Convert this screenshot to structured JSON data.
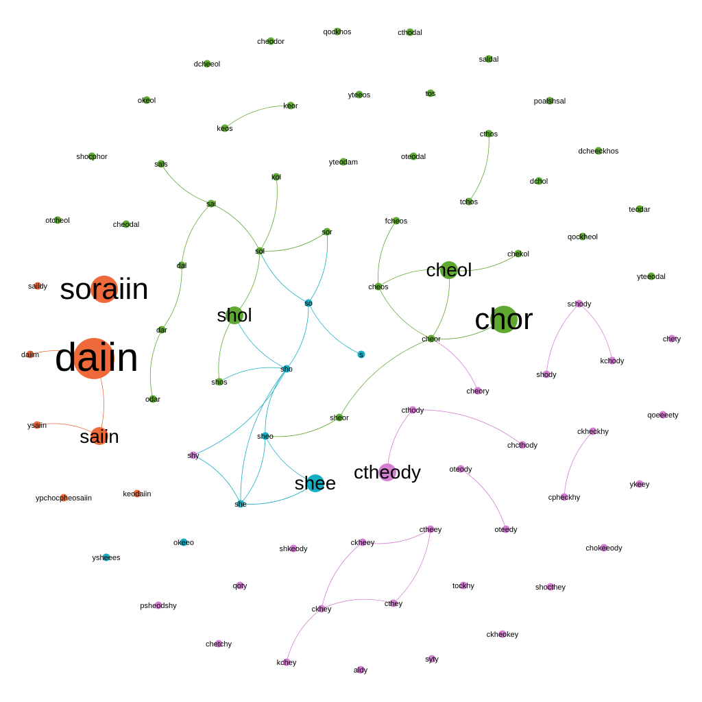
{
  "colors": {
    "orange": "#ef6a3a",
    "green": "#5fa832",
    "teal": "#17aec4",
    "purple": "#d380d3"
  },
  "nodes": [
    {
      "id": "daiin",
      "label": "daiin",
      "group": "orange",
      "size": "xl"
    },
    {
      "id": "soraiin",
      "label": "soraiin",
      "group": "orange",
      "size": "l"
    },
    {
      "id": "saiin",
      "label": "saiin",
      "group": "orange",
      "size": "m"
    },
    {
      "id": "daiim",
      "label": "daiim",
      "group": "orange",
      "size": "s"
    },
    {
      "id": "saildy",
      "label": "saildy",
      "group": "orange",
      "size": "s"
    },
    {
      "id": "ysaiin",
      "label": "ysaiin",
      "group": "orange",
      "size": "s"
    },
    {
      "id": "keodaiin",
      "label": "keodaiin",
      "group": "orange",
      "size": "s"
    },
    {
      "id": "ypchocpheosaiin",
      "label": "ypchocpheosaiin",
      "group": "orange",
      "size": "s"
    },
    {
      "id": "chor",
      "label": "chor",
      "group": "green",
      "size": "l"
    },
    {
      "id": "cheol",
      "label": "cheol",
      "group": "green",
      "size": "m"
    },
    {
      "id": "shol",
      "label": "shol",
      "group": "green",
      "size": "m"
    },
    {
      "id": "cheodor",
      "label": "cheodor",
      "group": "green",
      "size": "s"
    },
    {
      "id": "qockhos",
      "label": "qockhos",
      "group": "green",
      "size": "s"
    },
    {
      "id": "cthodal",
      "label": "cthodal",
      "group": "green",
      "size": "s"
    },
    {
      "id": "saldal",
      "label": "saldal",
      "group": "green",
      "size": "s"
    },
    {
      "id": "dcheeol",
      "label": "dcheeol",
      "group": "green",
      "size": "s"
    },
    {
      "id": "okeol",
      "label": "okeol",
      "group": "green",
      "size": "s"
    },
    {
      "id": "keor",
      "label": "keor",
      "group": "green",
      "size": "s"
    },
    {
      "id": "yteeos",
      "label": "yteeos",
      "group": "green",
      "size": "s"
    },
    {
      "id": "tos",
      "label": "tos",
      "group": "green",
      "size": "s"
    },
    {
      "id": "poalshsal",
      "label": "poalshsal",
      "group": "green",
      "size": "s"
    },
    {
      "id": "keos",
      "label": "keos",
      "group": "green",
      "size": "s"
    },
    {
      "id": "cthos",
      "label": "cthos",
      "group": "green",
      "size": "s"
    },
    {
      "id": "shocphor",
      "label": "shocphor",
      "group": "green",
      "size": "s"
    },
    {
      "id": "sals",
      "label": "sals",
      "group": "green",
      "size": "s"
    },
    {
      "id": "yteodam",
      "label": "yteodam",
      "group": "green",
      "size": "s"
    },
    {
      "id": "oteodal",
      "label": "oteodal",
      "group": "green",
      "size": "s"
    },
    {
      "id": "dcheeckhos",
      "label": "dcheeckhos",
      "group": "green",
      "size": "s"
    },
    {
      "id": "kol",
      "label": "kol",
      "group": "green",
      "size": "s"
    },
    {
      "id": "dchol",
      "label": "dchol",
      "group": "green",
      "size": "s"
    },
    {
      "id": "sal",
      "label": "sal",
      "group": "green",
      "size": "s"
    },
    {
      "id": "tchos",
      "label": "tchos",
      "group": "green",
      "size": "s"
    },
    {
      "id": "teodar",
      "label": "teodar",
      "group": "green",
      "size": "s"
    },
    {
      "id": "otcheol",
      "label": "otcheol",
      "group": "green",
      "size": "s"
    },
    {
      "id": "cheodal",
      "label": "cheodal",
      "group": "green",
      "size": "s"
    },
    {
      "id": "fcheos",
      "label": "fcheos",
      "group": "green",
      "size": "s"
    },
    {
      "id": "sor",
      "label": "sor",
      "group": "green",
      "size": "s"
    },
    {
      "id": "qockheol",
      "label": "qockheol",
      "group": "green",
      "size": "s"
    },
    {
      "id": "sol",
      "label": "sol",
      "group": "green",
      "size": "s"
    },
    {
      "id": "chekol",
      "label": "chekol",
      "group": "green",
      "size": "s"
    },
    {
      "id": "dal",
      "label": "dal",
      "group": "green",
      "size": "s"
    },
    {
      "id": "yteeodal",
      "label": "yteeodal",
      "group": "green",
      "size": "s"
    },
    {
      "id": "cheos",
      "label": "cheos",
      "group": "green",
      "size": "s"
    },
    {
      "id": "dar",
      "label": "dar",
      "group": "green",
      "size": "s"
    },
    {
      "id": "cheor",
      "label": "cheor",
      "group": "green",
      "size": "s"
    },
    {
      "id": "shos",
      "label": "shos",
      "group": "green",
      "size": "s"
    },
    {
      "id": "odar",
      "label": "odar",
      "group": "green",
      "size": "s"
    },
    {
      "id": "sheor",
      "label": "sheor",
      "group": "green",
      "size": "s"
    },
    {
      "id": "shee",
      "label": "shee",
      "group": "teal",
      "size": "m"
    },
    {
      "id": "so",
      "label": "so",
      "group": "teal",
      "size": "s"
    },
    {
      "id": "s",
      "label": "s",
      "group": "teal",
      "size": "s"
    },
    {
      "id": "sho",
      "label": "sho",
      "group": "teal",
      "size": "s"
    },
    {
      "id": "sheo",
      "label": "sheo",
      "group": "teal",
      "size": "s"
    },
    {
      "id": "she",
      "label": "she",
      "group": "teal",
      "size": "s"
    },
    {
      "id": "okeeo",
      "label": "okeeo",
      "group": "teal",
      "size": "s"
    },
    {
      "id": "ysheees",
      "label": "ysheees",
      "group": "teal",
      "size": "s"
    },
    {
      "id": "ctheody",
      "label": "ctheody",
      "group": "purple",
      "size": "m"
    },
    {
      "id": "shy",
      "label": "shy",
      "group": "purple",
      "size": "s"
    },
    {
      "id": "schody",
      "label": "schody",
      "group": "purple",
      "size": "s"
    },
    {
      "id": "chety",
      "label": "chety",
      "group": "purple",
      "size": "s"
    },
    {
      "id": "kchody",
      "label": "kchody",
      "group": "purple",
      "size": "s"
    },
    {
      "id": "shody",
      "label": "shody",
      "group": "purple",
      "size": "s"
    },
    {
      "id": "cheory",
      "label": "cheory",
      "group": "purple",
      "size": "s"
    },
    {
      "id": "cthody",
      "label": "cthody",
      "group": "purple",
      "size": "s"
    },
    {
      "id": "qoeeeety",
      "label": "qoeeeety",
      "group": "purple",
      "size": "s"
    },
    {
      "id": "ckheckhy",
      "label": "ckheckhy",
      "group": "purple",
      "size": "s"
    },
    {
      "id": "chcthody",
      "label": "chcthody",
      "group": "purple",
      "size": "s"
    },
    {
      "id": "oteody",
      "label": "oteody",
      "group": "purple",
      "size": "s"
    },
    {
      "id": "cpheckhy",
      "label": "cpheckhy",
      "group": "purple",
      "size": "s"
    },
    {
      "id": "ykeey",
      "label": "ykeey",
      "group": "purple",
      "size": "s"
    },
    {
      "id": "oteedy",
      "label": "oteedy",
      "group": "purple",
      "size": "s"
    },
    {
      "id": "ctheey",
      "label": "ctheey",
      "group": "purple",
      "size": "s"
    },
    {
      "id": "ckheey",
      "label": "ckheey",
      "group": "purple",
      "size": "s"
    },
    {
      "id": "shkeody",
      "label": "shkeody",
      "group": "purple",
      "size": "s"
    },
    {
      "id": "chokeeody",
      "label": "chokeeody",
      "group": "purple",
      "size": "s"
    },
    {
      "id": "qoty",
      "label": "qoty",
      "group": "purple",
      "size": "s"
    },
    {
      "id": "tockhy",
      "label": "tockhy",
      "group": "purple",
      "size": "s"
    },
    {
      "id": "shocthey",
      "label": "shocthey",
      "group": "purple",
      "size": "s"
    },
    {
      "id": "ckhey",
      "label": "ckhey",
      "group": "purple",
      "size": "s"
    },
    {
      "id": "cthey",
      "label": "cthey",
      "group": "purple",
      "size": "s"
    },
    {
      "id": "psheodshy",
      "label": "psheodshy",
      "group": "purple",
      "size": "s"
    },
    {
      "id": "ckheokey",
      "label": "ckheokey",
      "group": "purple",
      "size": "s"
    },
    {
      "id": "chetchy",
      "label": "chetchy",
      "group": "purple",
      "size": "s"
    },
    {
      "id": "kchey",
      "label": "kchey",
      "group": "purple",
      "size": "s"
    },
    {
      "id": "syty",
      "label": "syty",
      "group": "purple",
      "size": "s"
    },
    {
      "id": "aldy",
      "label": "aldy",
      "group": "purple",
      "size": "s"
    }
  ],
  "edges": [
    {
      "source": "daiin",
      "target": "daiim",
      "group": "orange"
    },
    {
      "source": "daiin",
      "target": "saiin",
      "group": "orange"
    },
    {
      "source": "saiin",
      "target": "ysaiin",
      "group": "orange"
    },
    {
      "source": "keos",
      "target": "keor",
      "group": "green"
    },
    {
      "source": "sals",
      "target": "sal",
      "group": "green"
    },
    {
      "source": "sal",
      "target": "sol",
      "group": "green"
    },
    {
      "source": "sal",
      "target": "dal",
      "group": "green"
    },
    {
      "source": "dal",
      "target": "dar",
      "group": "green"
    },
    {
      "source": "dar",
      "target": "odar",
      "group": "green"
    },
    {
      "source": "kol",
      "target": "sol",
      "group": "green"
    },
    {
      "source": "sol",
      "target": "sor",
      "group": "green"
    },
    {
      "source": "sol",
      "target": "shol",
      "group": "green"
    },
    {
      "source": "shol",
      "target": "shos",
      "group": "green"
    },
    {
      "source": "cthos",
      "target": "tchos",
      "group": "green"
    },
    {
      "source": "fcheos",
      "target": "cheos",
      "group": "green"
    },
    {
      "source": "cheos",
      "target": "cheol",
      "group": "green"
    },
    {
      "source": "cheol",
      "target": "chekol",
      "group": "green"
    },
    {
      "source": "cheol",
      "target": "cheor",
      "group": "green"
    },
    {
      "source": "cheor",
      "target": "chor",
      "group": "green"
    },
    {
      "source": "cheor",
      "target": "cheos",
      "group": "green"
    },
    {
      "source": "cheor",
      "target": "sheor",
      "group": "green"
    },
    {
      "source": "sheor",
      "target": "sheo",
      "group": "green"
    },
    {
      "source": "sol",
      "target": "so",
      "group": "teal"
    },
    {
      "source": "sor",
      "target": "so",
      "group": "teal"
    },
    {
      "source": "so",
      "target": "s",
      "group": "teal"
    },
    {
      "source": "so",
      "target": "sho",
      "group": "teal"
    },
    {
      "source": "shol",
      "target": "sho",
      "group": "teal"
    },
    {
      "source": "shos",
      "target": "sho",
      "group": "teal"
    },
    {
      "source": "sho",
      "target": "sheo",
      "group": "teal"
    },
    {
      "source": "sho",
      "target": "shy",
      "group": "teal"
    },
    {
      "source": "sho",
      "target": "she",
      "group": "teal"
    },
    {
      "source": "sheo",
      "target": "she",
      "group": "teal"
    },
    {
      "source": "sheo",
      "target": "shee",
      "group": "teal"
    },
    {
      "source": "shy",
      "target": "she",
      "group": "teal"
    },
    {
      "source": "she",
      "target": "shee",
      "group": "teal"
    },
    {
      "source": "cheor",
      "target": "cheory",
      "group": "purple"
    },
    {
      "source": "schody",
      "target": "shody",
      "group": "purple"
    },
    {
      "source": "schody",
      "target": "kchody",
      "group": "purple"
    },
    {
      "source": "cthody",
      "target": "ctheody",
      "group": "purple"
    },
    {
      "source": "cthody",
      "target": "chcthody",
      "group": "purple"
    },
    {
      "source": "ckheckhy",
      "target": "cpheckhy",
      "group": "purple"
    },
    {
      "source": "oteody",
      "target": "oteedy",
      "group": "purple"
    },
    {
      "source": "ckheey",
      "target": "ctheey",
      "group": "purple"
    },
    {
      "source": "ctheey",
      "target": "cthey",
      "group": "purple"
    },
    {
      "source": "ckheey",
      "target": "ckhey",
      "group": "purple"
    },
    {
      "source": "ckhey",
      "target": "cthey",
      "group": "purple"
    },
    {
      "source": "ckhey",
      "target": "kchey",
      "group": "purple"
    }
  ]
}
